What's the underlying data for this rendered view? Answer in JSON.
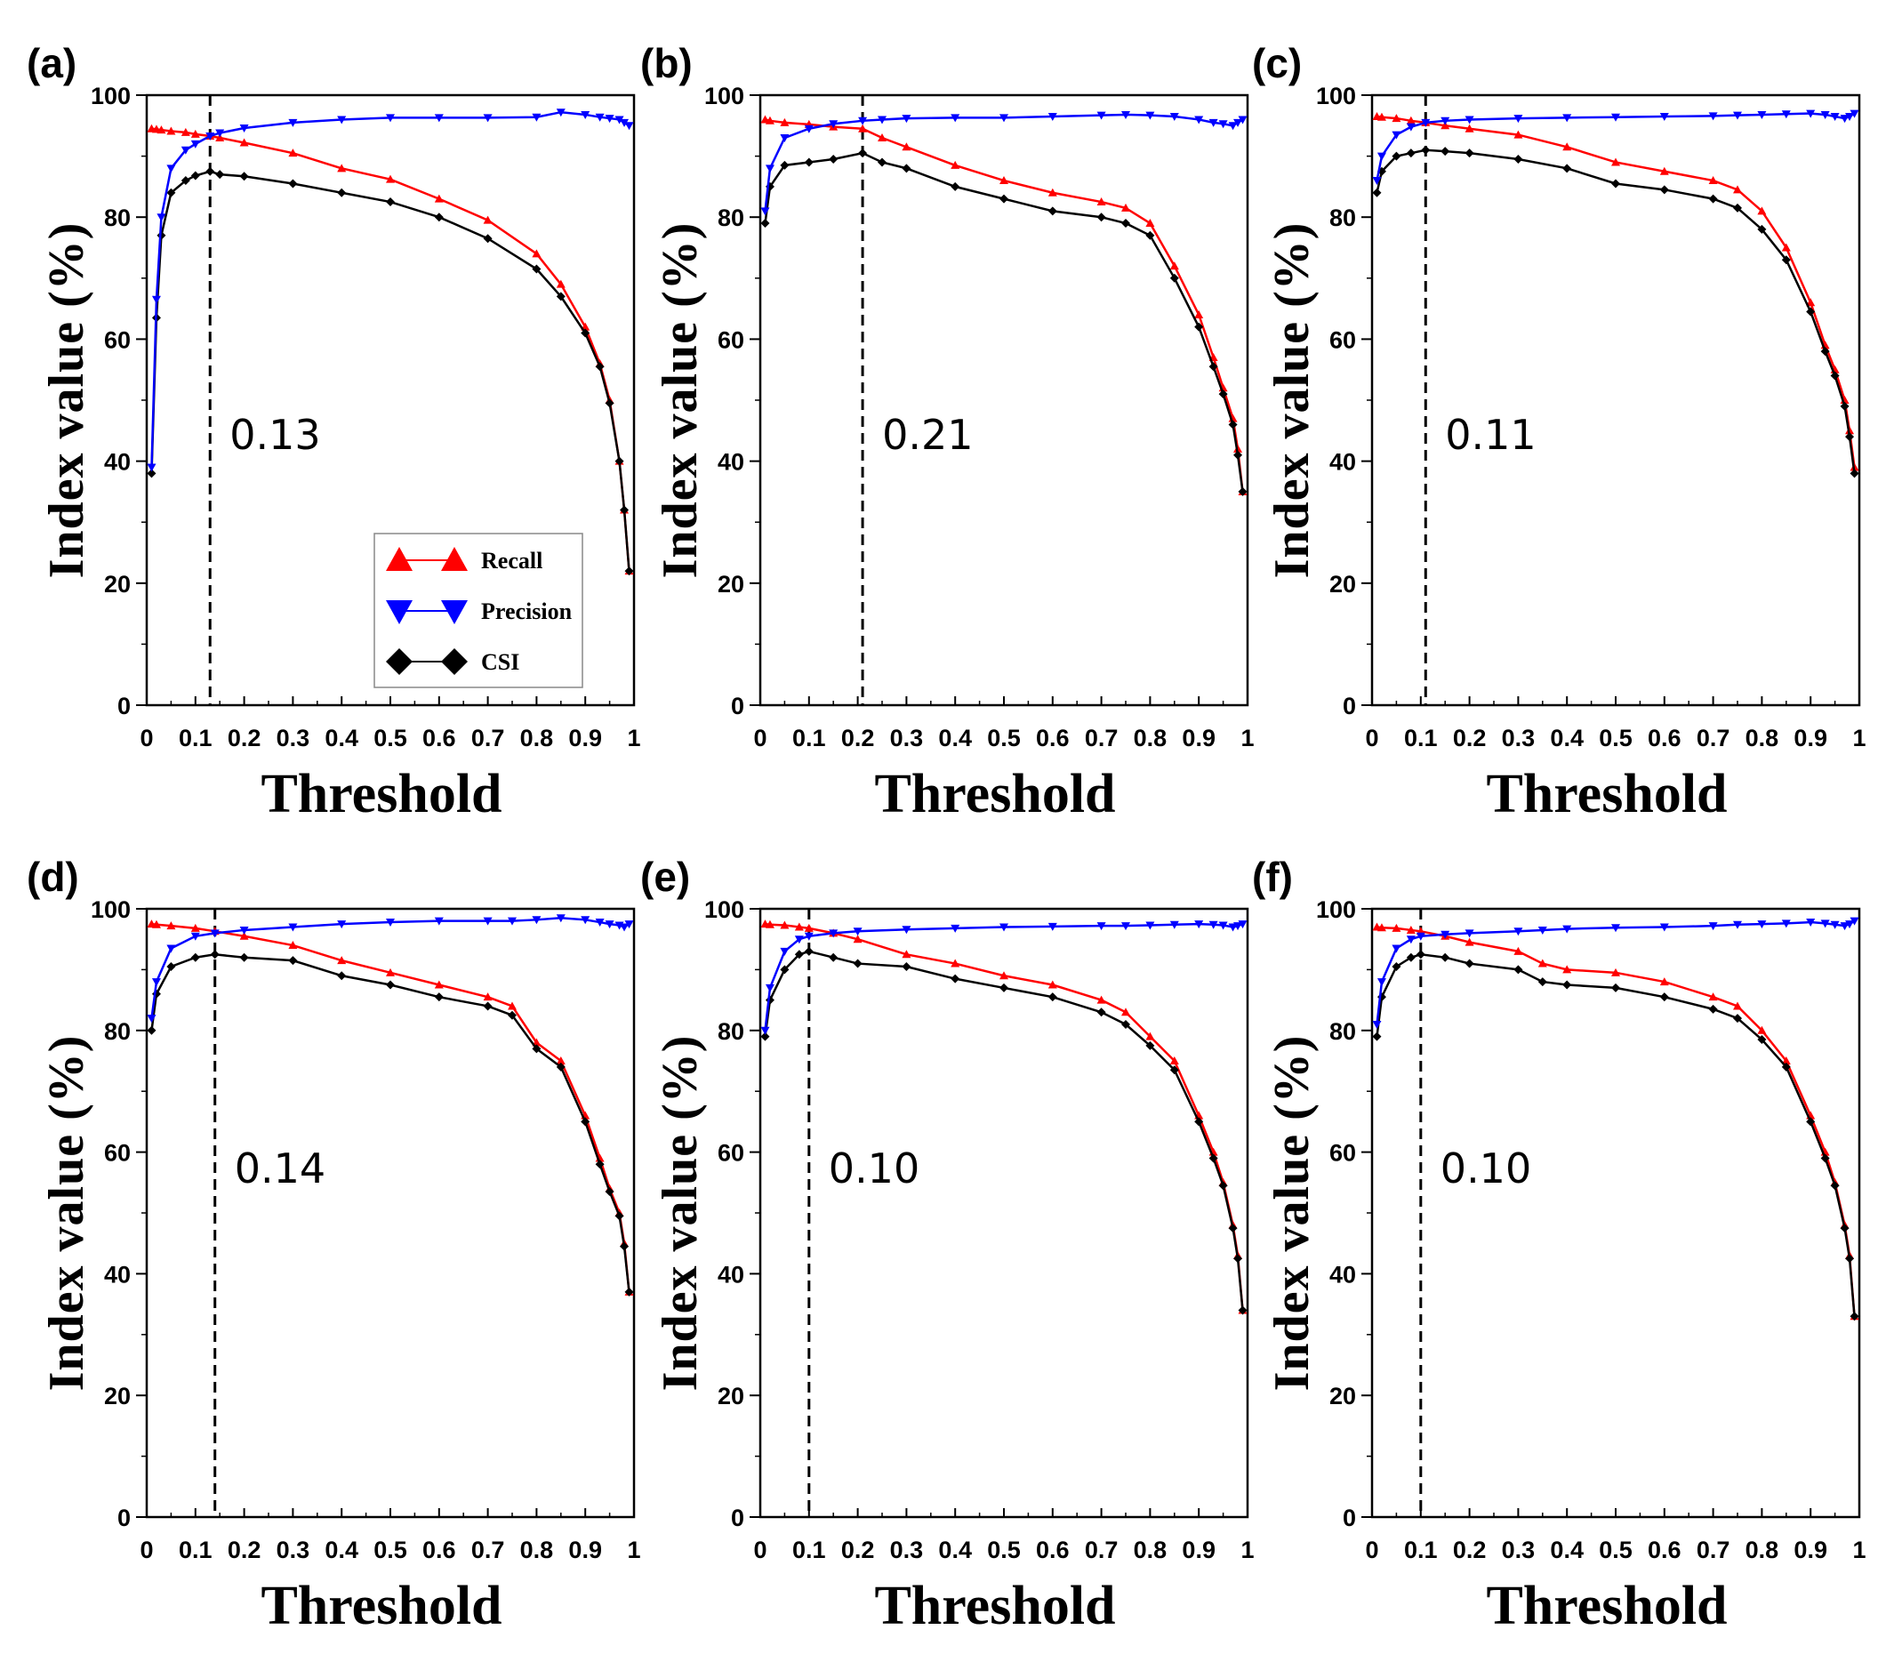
{
  "colors": {
    "recall": "#ff0000",
    "precision": "#0000ff",
    "csi": "#000000"
  },
  "legend": {
    "placement": "inside-bottom-center",
    "items": [
      "Recall",
      "Precision",
      "CSI"
    ]
  },
  "chart_data": [
    {
      "type": "line",
      "panel_label": "(a)",
      "threshold_label": "0.13",
      "threshold": 0.13,
      "xlabel": "Threshold",
      "ylabel": "Index value (%)",
      "xlim": [
        0,
        1
      ],
      "ylim": [
        0,
        100
      ],
      "xticks": [
        "0",
        "0.1",
        "0.2",
        "0.3",
        "0.4",
        "0.5",
        "0.6",
        "0.7",
        "0.8",
        "0.9",
        "1"
      ],
      "yticks": [
        "0",
        "20",
        "40",
        "60",
        "80",
        "100"
      ],
      "x": [
        0.01,
        0.02,
        0.03,
        0.05,
        0.08,
        0.1,
        0.13,
        0.15,
        0.2,
        0.3,
        0.4,
        0.5,
        0.6,
        0.7,
        0.8,
        0.85,
        0.9,
        0.93,
        0.95,
        0.97,
        0.98,
        0.99
      ],
      "series": [
        {
          "name": "Recall",
          "values": [
            94.5,
            94.4,
            94.3,
            94.1,
            93.9,
            93.6,
            93.3,
            93.0,
            92.2,
            90.5,
            88.0,
            86.2,
            83.0,
            79.5,
            74.0,
            69.0,
            62.0,
            56.0,
            50.0,
            40.0,
            32.0,
            22.0
          ]
        },
        {
          "name": "Precision",
          "values": [
            39.0,
            66.5,
            80.0,
            88.0,
            91.0,
            92.0,
            93.3,
            93.8,
            94.6,
            95.5,
            96.0,
            96.3,
            96.3,
            96.3,
            96.4,
            97.2,
            96.8,
            96.4,
            96.2,
            96.0,
            95.5,
            95.0
          ]
        },
        {
          "name": "CSI",
          "values": [
            38.0,
            63.5,
            77.0,
            84.0,
            86.0,
            86.8,
            87.5,
            87.0,
            86.7,
            85.5,
            84.0,
            82.5,
            80.0,
            76.5,
            71.5,
            67.0,
            61.0,
            55.5,
            49.5,
            40.0,
            32.0,
            22.0
          ]
        }
      ]
    },
    {
      "type": "line",
      "panel_label": "(b)",
      "threshold_label": "0.21",
      "threshold": 0.21,
      "xlabel": "Threshold",
      "ylabel": "Index value (%)",
      "xlim": [
        0,
        1
      ],
      "ylim": [
        0,
        100
      ],
      "xticks": [
        "0",
        "0.1",
        "0.2",
        "0.3",
        "0.4",
        "0.5",
        "0.6",
        "0.7",
        "0.8",
        "0.9",
        "1"
      ],
      "yticks": [
        "0",
        "20",
        "40",
        "60",
        "80",
        "100"
      ],
      "x": [
        0.01,
        0.02,
        0.05,
        0.1,
        0.15,
        0.21,
        0.25,
        0.3,
        0.4,
        0.5,
        0.6,
        0.7,
        0.75,
        0.8,
        0.85,
        0.9,
        0.93,
        0.95,
        0.97,
        0.98,
        0.99
      ],
      "series": [
        {
          "name": "Recall",
          "values": [
            96.0,
            95.8,
            95.5,
            95.2,
            94.8,
            94.5,
            93.0,
            91.5,
            88.5,
            86.0,
            84.0,
            82.5,
            81.5,
            79.0,
            72.0,
            64.0,
            57.0,
            52.0,
            47.0,
            42.0,
            35.0
          ]
        },
        {
          "name": "Precision",
          "values": [
            81.0,
            88.0,
            93.0,
            94.5,
            95.3,
            95.8,
            96.0,
            96.2,
            96.3,
            96.3,
            96.5,
            96.7,
            96.8,
            96.7,
            96.5,
            96.0,
            95.5,
            95.3,
            95.0,
            95.5,
            96.0
          ]
        },
        {
          "name": "CSI",
          "values": [
            79.0,
            85.0,
            88.5,
            89.0,
            89.5,
            90.5,
            89.0,
            88.0,
            85.0,
            83.0,
            81.0,
            80.0,
            79.0,
            77.0,
            70.0,
            62.0,
            55.5,
            51.0,
            46.0,
            41.0,
            35.0
          ]
        }
      ]
    },
    {
      "type": "line",
      "panel_label": "(c)",
      "threshold_label": "0.11",
      "threshold": 0.11,
      "xlabel": "Threshold",
      "ylabel": "Index value (%)",
      "xlim": [
        0,
        1
      ],
      "ylim": [
        0,
        100
      ],
      "xticks": [
        "0",
        "0.1",
        "0.2",
        "0.3",
        "0.4",
        "0.5",
        "0.6",
        "0.7",
        "0.8",
        "0.9",
        "1"
      ],
      "yticks": [
        "0",
        "20",
        "40",
        "60",
        "80",
        "100"
      ],
      "x": [
        0.01,
        0.02,
        0.05,
        0.08,
        0.11,
        0.15,
        0.2,
        0.3,
        0.4,
        0.5,
        0.6,
        0.7,
        0.75,
        0.8,
        0.85,
        0.9,
        0.93,
        0.95,
        0.97,
        0.98,
        0.99
      ],
      "series": [
        {
          "name": "Recall",
          "values": [
            96.5,
            96.4,
            96.2,
            95.8,
            95.5,
            95.0,
            94.5,
            93.5,
            91.5,
            89.0,
            87.5,
            86.0,
            84.5,
            81.0,
            75.0,
            66.0,
            59.0,
            55.0,
            50.0,
            45.0,
            39.0
          ]
        },
        {
          "name": "Precision",
          "values": [
            86.0,
            90.0,
            93.5,
            94.8,
            95.5,
            95.8,
            96.0,
            96.2,
            96.3,
            96.4,
            96.5,
            96.6,
            96.7,
            96.8,
            96.9,
            97.0,
            96.8,
            96.5,
            96.2,
            96.5,
            97.0
          ]
        },
        {
          "name": "CSI",
          "values": [
            84.0,
            87.5,
            90.0,
            90.5,
            91.0,
            90.8,
            90.5,
            89.5,
            88.0,
            85.5,
            84.5,
            83.0,
            81.5,
            78.0,
            73.0,
            64.5,
            58.0,
            54.0,
            49.0,
            44.0,
            38.0
          ]
        }
      ]
    },
    {
      "type": "line",
      "panel_label": "(d)",
      "threshold_label": "0.14",
      "threshold": 0.14,
      "xlabel": "Threshold",
      "ylabel": "Index value (%)",
      "xlim": [
        0,
        1
      ],
      "ylim": [
        0,
        100
      ],
      "xticks": [
        "0",
        "0.1",
        "0.2",
        "0.3",
        "0.4",
        "0.5",
        "0.6",
        "0.7",
        "0.8",
        "0.9",
        "1"
      ],
      "yticks": [
        "0",
        "20",
        "40",
        "60",
        "80",
        "100"
      ],
      "x": [
        0.01,
        0.02,
        0.05,
        0.1,
        0.14,
        0.2,
        0.3,
        0.4,
        0.5,
        0.6,
        0.7,
        0.75,
        0.8,
        0.85,
        0.9,
        0.93,
        0.95,
        0.97,
        0.98,
        0.99
      ],
      "series": [
        {
          "name": "Recall",
          "values": [
            97.5,
            97.4,
            97.2,
            96.8,
            96.3,
            95.5,
            94.0,
            91.5,
            89.5,
            87.5,
            85.5,
            84.0,
            78.0,
            75.0,
            66.0,
            59.0,
            54.0,
            50.0,
            45.0,
            37.0
          ]
        },
        {
          "name": "Precision",
          "values": [
            82.0,
            88.0,
            93.5,
            95.5,
            96.0,
            96.5,
            97.0,
            97.5,
            97.8,
            98.0,
            98.0,
            98.0,
            98.2,
            98.5,
            98.2,
            97.8,
            97.5,
            97.3,
            97.0,
            97.5
          ]
        },
        {
          "name": "CSI",
          "values": [
            80.0,
            86.0,
            90.5,
            92.0,
            92.5,
            92.0,
            91.5,
            89.0,
            87.5,
            85.5,
            84.0,
            82.5,
            77.0,
            74.0,
            65.0,
            58.0,
            53.5,
            49.5,
            44.5,
            37.0
          ]
        }
      ]
    },
    {
      "type": "line",
      "panel_label": "(e)",
      "threshold_label": "0.10",
      "threshold": 0.1,
      "xlabel": "Threshold",
      "ylabel": "Index value (%)",
      "xlim": [
        0,
        1
      ],
      "ylim": [
        0,
        100
      ],
      "xticks": [
        "0",
        "0.1",
        "0.2",
        "0.3",
        "0.4",
        "0.5",
        "0.6",
        "0.7",
        "0.8",
        "0.9",
        "1"
      ],
      "yticks": [
        "0",
        "20",
        "40",
        "60",
        "80",
        "100"
      ],
      "x": [
        0.01,
        0.02,
        0.05,
        0.08,
        0.1,
        0.15,
        0.2,
        0.3,
        0.4,
        0.5,
        0.6,
        0.7,
        0.75,
        0.8,
        0.85,
        0.9,
        0.93,
        0.95,
        0.97,
        0.98,
        0.99
      ],
      "series": [
        {
          "name": "Recall",
          "values": [
            97.5,
            97.4,
            97.3,
            97.0,
            96.8,
            96.0,
            95.0,
            92.5,
            91.0,
            89.0,
            87.5,
            85.0,
            83.0,
            79.0,
            75.0,
            66.0,
            60.0,
            55.0,
            48.0,
            43.0,
            34.0
          ]
        },
        {
          "name": "Precision",
          "values": [
            80.0,
            87.0,
            93.0,
            95.0,
            95.5,
            96.0,
            96.3,
            96.6,
            96.8,
            97.0,
            97.1,
            97.2,
            97.2,
            97.3,
            97.4,
            97.5,
            97.4,
            97.3,
            97.0,
            97.2,
            97.5
          ]
        },
        {
          "name": "CSI",
          "values": [
            79.0,
            85.0,
            90.0,
            92.5,
            93.0,
            92.0,
            91.0,
            90.5,
            88.5,
            87.0,
            85.5,
            83.0,
            81.0,
            77.5,
            73.5,
            65.0,
            59.0,
            54.5,
            47.5,
            42.5,
            34.0
          ]
        }
      ]
    },
    {
      "type": "line",
      "panel_label": "(f)",
      "threshold_label": "0.10",
      "threshold": 0.1,
      "xlabel": "Threshold",
      "ylabel": "Index value (%)",
      "xlim": [
        0,
        1
      ],
      "ylim": [
        0,
        100
      ],
      "xticks": [
        "0",
        "0.1",
        "0.2",
        "0.3",
        "0.4",
        "0.5",
        "0.6",
        "0.7",
        "0.8",
        "0.9",
        "1"
      ],
      "yticks": [
        "0",
        "20",
        "40",
        "60",
        "80",
        "100"
      ],
      "x": [
        0.01,
        0.02,
        0.05,
        0.08,
        0.1,
        0.15,
        0.2,
        0.3,
        0.35,
        0.4,
        0.5,
        0.6,
        0.7,
        0.75,
        0.8,
        0.85,
        0.9,
        0.93,
        0.95,
        0.97,
        0.98,
        0.99
      ],
      "series": [
        {
          "name": "Recall",
          "values": [
            97.0,
            96.9,
            96.8,
            96.5,
            96.3,
            95.5,
            94.5,
            93.0,
            91.0,
            90.0,
            89.5,
            88.0,
            85.5,
            84.0,
            80.0,
            75.0,
            66.0,
            60.0,
            55.0,
            48.0,
            43.0,
            33.0
          ]
        },
        {
          "name": "Precision",
          "values": [
            81.0,
            88.0,
            93.5,
            95.0,
            95.5,
            95.8,
            96.0,
            96.3,
            96.5,
            96.7,
            96.9,
            97.0,
            97.2,
            97.4,
            97.5,
            97.6,
            97.8,
            97.6,
            97.4,
            97.2,
            97.5,
            98.0
          ]
        },
        {
          "name": "CSI",
          "values": [
            79.0,
            85.5,
            90.5,
            92.0,
            92.5,
            92.0,
            91.0,
            90.0,
            88.0,
            87.5,
            87.0,
            85.5,
            83.5,
            82.0,
            78.5,
            74.0,
            65.0,
            59.0,
            54.5,
            47.5,
            42.5,
            33.0
          ]
        }
      ]
    }
  ]
}
